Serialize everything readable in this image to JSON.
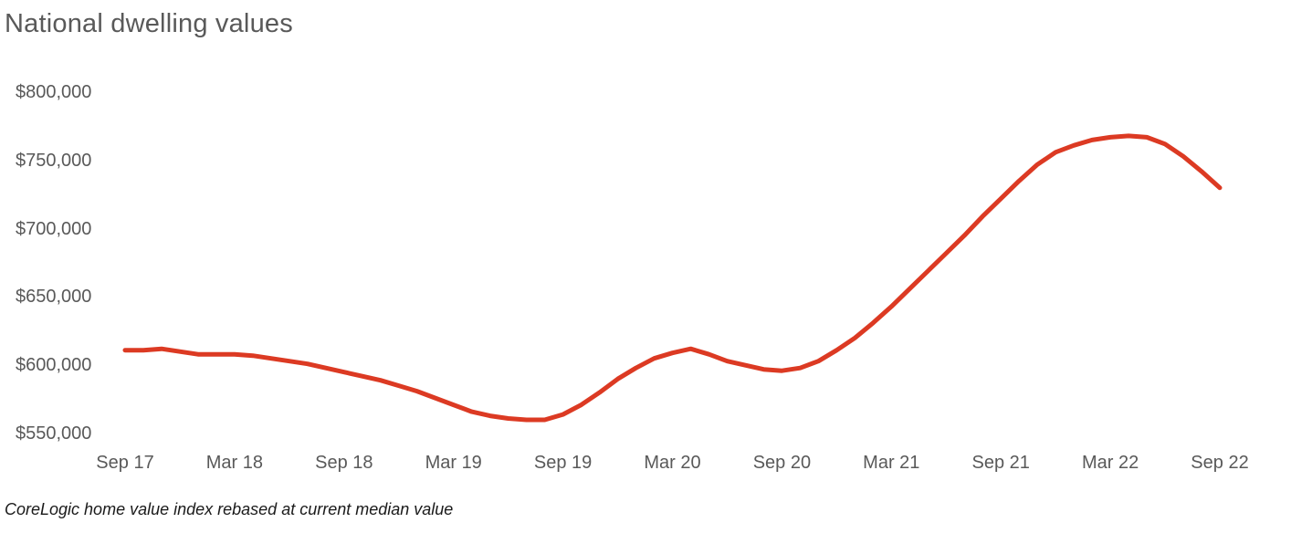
{
  "footnote": "CoreLogic home value index rebased at current median value",
  "colors": {
    "background": "#ffffff",
    "line": "#dc3a23",
    "title_text": "#595959",
    "axis_text": "#595959",
    "footnote_text": "#1a1a1a"
  },
  "chart_data": {
    "type": "line",
    "title": "National dwelling values",
    "xlabel": "",
    "ylabel": "",
    "ylim": [
      550000,
      800000
    ],
    "grid": false,
    "legend": false,
    "legend_position": "none",
    "y_tick_labels": [
      "$800,000",
      "$750,000",
      "$700,000",
      "$650,000",
      "$600,000",
      "$550,000"
    ],
    "y_tick_values": [
      800000,
      750000,
      700000,
      650000,
      600000,
      550000
    ],
    "x_tick_labels": [
      "Sep 17",
      "Mar 18",
      "Sep 18",
      "Mar 19",
      "Sep 19",
      "Mar 20",
      "Sep 20",
      "Mar 21",
      "Sep 21",
      "Mar 22",
      "Sep 22"
    ],
    "x_tick_month_index": [
      0,
      6,
      12,
      18,
      24,
      30,
      36,
      42,
      48,
      54,
      60
    ],
    "series": [
      {
        "name": "National dwelling values",
        "color": "#dc3a23",
        "months": [
          "Sep 17",
          "Oct 17",
          "Nov 17",
          "Dec 17",
          "Jan 18",
          "Feb 18",
          "Mar 18",
          "Apr 18",
          "May 18",
          "Jun 18",
          "Jul 18",
          "Aug 18",
          "Sep 18",
          "Oct 18",
          "Nov 18",
          "Dec 18",
          "Jan 19",
          "Feb 19",
          "Mar 19",
          "Apr 19",
          "May 19",
          "Jun 19",
          "Jul 19",
          "Aug 19",
          "Sep 19",
          "Oct 19",
          "Nov 19",
          "Dec 19",
          "Jan 20",
          "Feb 20",
          "Mar 20",
          "Apr 20",
          "May 20",
          "Jun 20",
          "Jul 20",
          "Aug 20",
          "Sep 20",
          "Oct 20",
          "Nov 20",
          "Dec 20",
          "Jan 21",
          "Feb 21",
          "Mar 21",
          "Apr 21",
          "May 21",
          "Jun 21",
          "Jul 21",
          "Aug 21",
          "Sep 21",
          "Oct 21",
          "Nov 21",
          "Dec 21",
          "Jan 22",
          "Feb 22",
          "Mar 22",
          "Apr 22",
          "May 22",
          "Jun 22",
          "Jul 22",
          "Aug 22",
          "Sep 22"
        ],
        "values": [
          611000,
          611000,
          612000,
          610000,
          608000,
          608000,
          608000,
          607000,
          605000,
          603000,
          601000,
          598000,
          595000,
          592000,
          589000,
          585000,
          581000,
          576000,
          571000,
          566000,
          563000,
          561000,
          560000,
          560000,
          564000,
          571000,
          580000,
          590000,
          598000,
          605000,
          609000,
          612000,
          608000,
          603000,
          600000,
          597000,
          596000,
          598000,
          603000,
          611000,
          620000,
          631000,
          643000,
          656000,
          669000,
          682000,
          695000,
          709000,
          722000,
          735000,
          747000,
          756000,
          761000,
          765000,
          767000,
          768000,
          767000,
          762000,
          753000,
          742000,
          730000
        ]
      }
    ]
  }
}
